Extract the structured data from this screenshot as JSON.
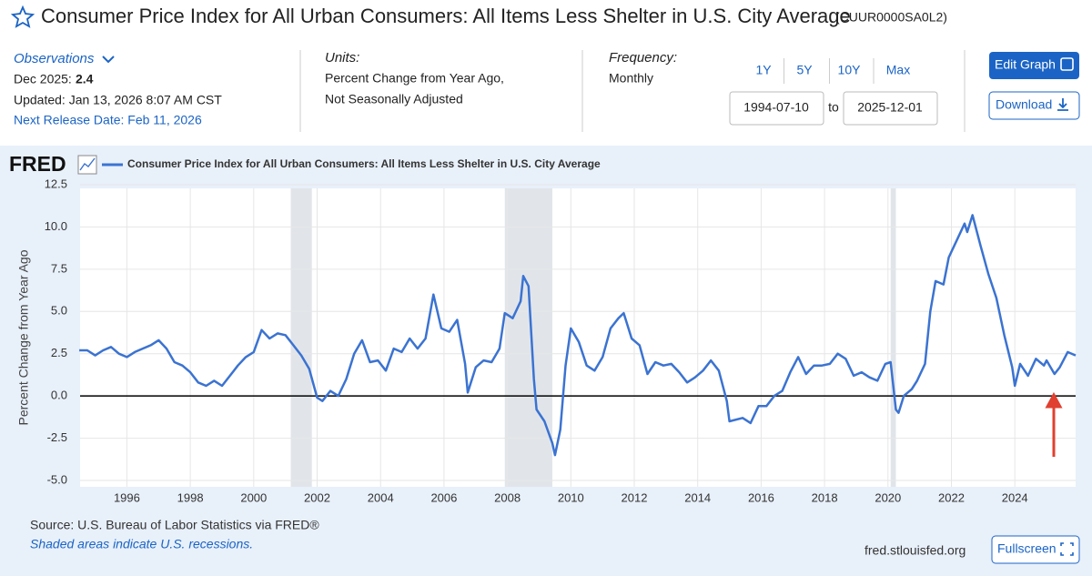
{
  "header": {
    "title": "Consumer Price Index for All Urban Consumers: All Items Less Shelter in U.S. City Average",
    "series_id": "(CUUR0000SA0L2)"
  },
  "observations": {
    "label": "Observations",
    "latest_date": "Dec 2025:",
    "latest_value": 2.4,
    "updated": "Updated: Jan 13, 2026 8:07 AM CST",
    "next_release": "Next Release Date: Feb 11, 2026"
  },
  "units": {
    "label": "Units:",
    "lines": [
      "Percent Change from Year Ago,",
      "Not Seasonally Adjusted"
    ]
  },
  "frequency": {
    "label": "Frequency:",
    "value": "Monthly"
  },
  "range_buttons": [
    "1Y",
    "5Y",
    "10Y",
    "Max"
  ],
  "date_range": {
    "start": "1994-07-10",
    "to": "to",
    "end": "2025-12-01"
  },
  "buttons": {
    "edit": "Edit Graph",
    "download": "Download",
    "fullscreen": "Fullscreen"
  },
  "chart_data": {
    "type": "line",
    "logo": "FRED",
    "ylabel": "Percent Change from Year Ago",
    "xlim": [
      "1994-07-10",
      "2025-12-01"
    ],
    "ylim": [
      -5,
      12.5
    ],
    "yticks": [
      12.5,
      {
        "value": 10,
        "label": "10.0"
      },
      {
        "value": 7.5,
        "label": "7.5"
      },
      {
        "value": 5,
        "label": "5.0"
      },
      2.5,
      {
        "value": 0,
        "label": "0.0"
      },
      -2.5,
      {
        "value": -5,
        "label": "-5.0"
      }
    ],
    "xticks": [
      {
        "value": "1996-01",
        "label": "1996"
      },
      {
        "value": "1998-01",
        "label": "1998"
      },
      {
        "value": "2000-01",
        "label": "2000"
      },
      {
        "value": "2002-01",
        "label": "2002"
      },
      {
        "value": "2004-01",
        "label": "2004"
      },
      {
        "value": "2006-01",
        "label": "2006"
      },
      {
        "value": "2008-01",
        "label": "2008"
      },
      {
        "value": "2010-01",
        "label": "2010"
      },
      {
        "value": "2012-01",
        "label": "2012"
      },
      {
        "value": "2014-01",
        "label": "2014"
      },
      {
        "value": "2016-01",
        "label": "2016"
      },
      {
        "value": "2018-01",
        "label": "2018"
      },
      {
        "value": "2020-01",
        "label": "2020"
      },
      {
        "value": "2022-01",
        "label": "2022"
      },
      {
        "value": "2024-01",
        "label": "2024"
      }
    ],
    "grid": true,
    "recessions": [
      {
        "start": "2001-03",
        "end": "2001-11"
      },
      {
        "start": "2007-12",
        "end": "2009-06"
      },
      {
        "start": "2020-02",
        "end": "2020-04"
      }
    ],
    "x": [
      "1994-07",
      "1994-10",
      "1995-01",
      "1995-04",
      "1995-07",
      "1995-10",
      "1996-01",
      "1996-04",
      "1996-07",
      "1996-10",
      "1997-01",
      "1997-04",
      "1997-07",
      "1997-10",
      "1998-01",
      "1998-04",
      "1998-07",
      "1998-10",
      "1999-01",
      "1999-04",
      "1999-07",
      "1999-10",
      "2000-01",
      "2000-04",
      "2000-07",
      "2000-10",
      "2001-01",
      "2001-04",
      "2001-07",
      "2001-10",
      "2002-01",
      "2002-03",
      "2002-06",
      "2002-09",
      "2002-12",
      "2003-03",
      "2003-06",
      "2003-09",
      "2003-12",
      "2004-03",
      "2004-06",
      "2004-09",
      "2004-12",
      "2005-03",
      "2005-06",
      "2005-09",
      "2005-12",
      "2006-03",
      "2006-06",
      "2006-09",
      "2006-10",
      "2007-01",
      "2007-04",
      "2007-07",
      "2007-10",
      "2007-12",
      "2008-03",
      "2008-06",
      "2008-07",
      "2008-09",
      "2008-11",
      "2008-12",
      "2009-03",
      "2009-06",
      "2009-07",
      "2009-09",
      "2009-11",
      "2010-01",
      "2010-04",
      "2010-07",
      "2010-10",
      "2011-01",
      "2011-04",
      "2011-07",
      "2011-09",
      "2011-12",
      "2012-03",
      "2012-06",
      "2012-09",
      "2012-12",
      "2013-03",
      "2013-06",
      "2013-09",
      "2013-12",
      "2014-03",
      "2014-06",
      "2014-09",
      "2014-12",
      "2015-01",
      "2015-06",
      "2015-09",
      "2015-12",
      "2016-03",
      "2016-06",
      "2016-09",
      "2016-12",
      "2017-03",
      "2017-06",
      "2017-09",
      "2017-12",
      "2018-03",
      "2018-06",
      "2018-09",
      "2018-12",
      "2019-03",
      "2019-06",
      "2019-09",
      "2019-12",
      "2020-02",
      "2020-04",
      "2020-05",
      "2020-07",
      "2020-10",
      "2020-12",
      "2021-03",
      "2021-05",
      "2021-07",
      "2021-10",
      "2021-12",
      "2022-03",
      "2022-06",
      "2022-07",
      "2022-09",
      "2022-12",
      "2023-03",
      "2023-06",
      "2023-09",
      "2023-12",
      "2024-01",
      "2024-03",
      "2024-06",
      "2024-09",
      "2024-12",
      "2025-01",
      "2025-04",
      "2025-06",
      "2025-09",
      "2025-12"
    ],
    "series": [
      {
        "name": "Consumer Price Index for All Urban Consumers: All Items Less Shelter in U.S. City Average",
        "color": "#3b73d1",
        "values": [
          2.7,
          2.7,
          2.4,
          2.7,
          2.9,
          2.5,
          2.3,
          2.6,
          2.8,
          3.0,
          3.3,
          2.8,
          2.0,
          1.8,
          1.4,
          0.8,
          0.6,
          0.9,
          0.6,
          1.2,
          1.8,
          2.3,
          2.6,
          3.9,
          3.4,
          3.7,
          3.6,
          3.0,
          2.4,
          1.6,
          -0.1,
          -0.3,
          0.3,
          0.0,
          1.0,
          2.5,
          3.3,
          2.0,
          2.1,
          1.5,
          2.8,
          2.6,
          3.4,
          2.8,
          3.4,
          6.0,
          4.0,
          3.8,
          4.5,
          1.9,
          0.2,
          1.7,
          2.1,
          2.0,
          2.8,
          4.9,
          4.6,
          5.6,
          7.1,
          6.5,
          1.0,
          -0.8,
          -1.5,
          -2.8,
          -3.5,
          -2.0,
          1.8,
          4.0,
          3.2,
          1.8,
          1.5,
          2.3,
          4.0,
          4.6,
          4.9,
          3.4,
          3.0,
          1.3,
          2.0,
          1.8,
          1.9,
          1.4,
          0.8,
          1.1,
          1.5,
          2.1,
          1.5,
          -0.3,
          -1.5,
          -1.3,
          -1.6,
          -0.6,
          -0.6,
          0.0,
          0.3,
          1.4,
          2.3,
          1.3,
          1.8,
          1.8,
          1.9,
          2.5,
          2.2,
          1.2,
          1.4,
          1.1,
          0.9,
          1.9,
          2.0,
          -0.8,
          -1.0,
          0.0,
          0.4,
          0.9,
          1.9,
          5.0,
          6.8,
          6.6,
          8.2,
          9.2,
          10.2,
          9.7,
          10.7,
          8.9,
          7.2,
          5.8,
          3.6,
          1.7,
          0.6,
          1.9,
          1.2,
          2.2,
          1.8,
          2.1,
          1.3,
          1.7,
          2.6,
          2.4
        ]
      }
    ]
  },
  "footer": {
    "source": "Source: U.S. Bureau of Labor Statistics via FRED®",
    "note": "Shaded areas indicate U.S. recessions.",
    "site": "fred.stlouisfed.org"
  }
}
